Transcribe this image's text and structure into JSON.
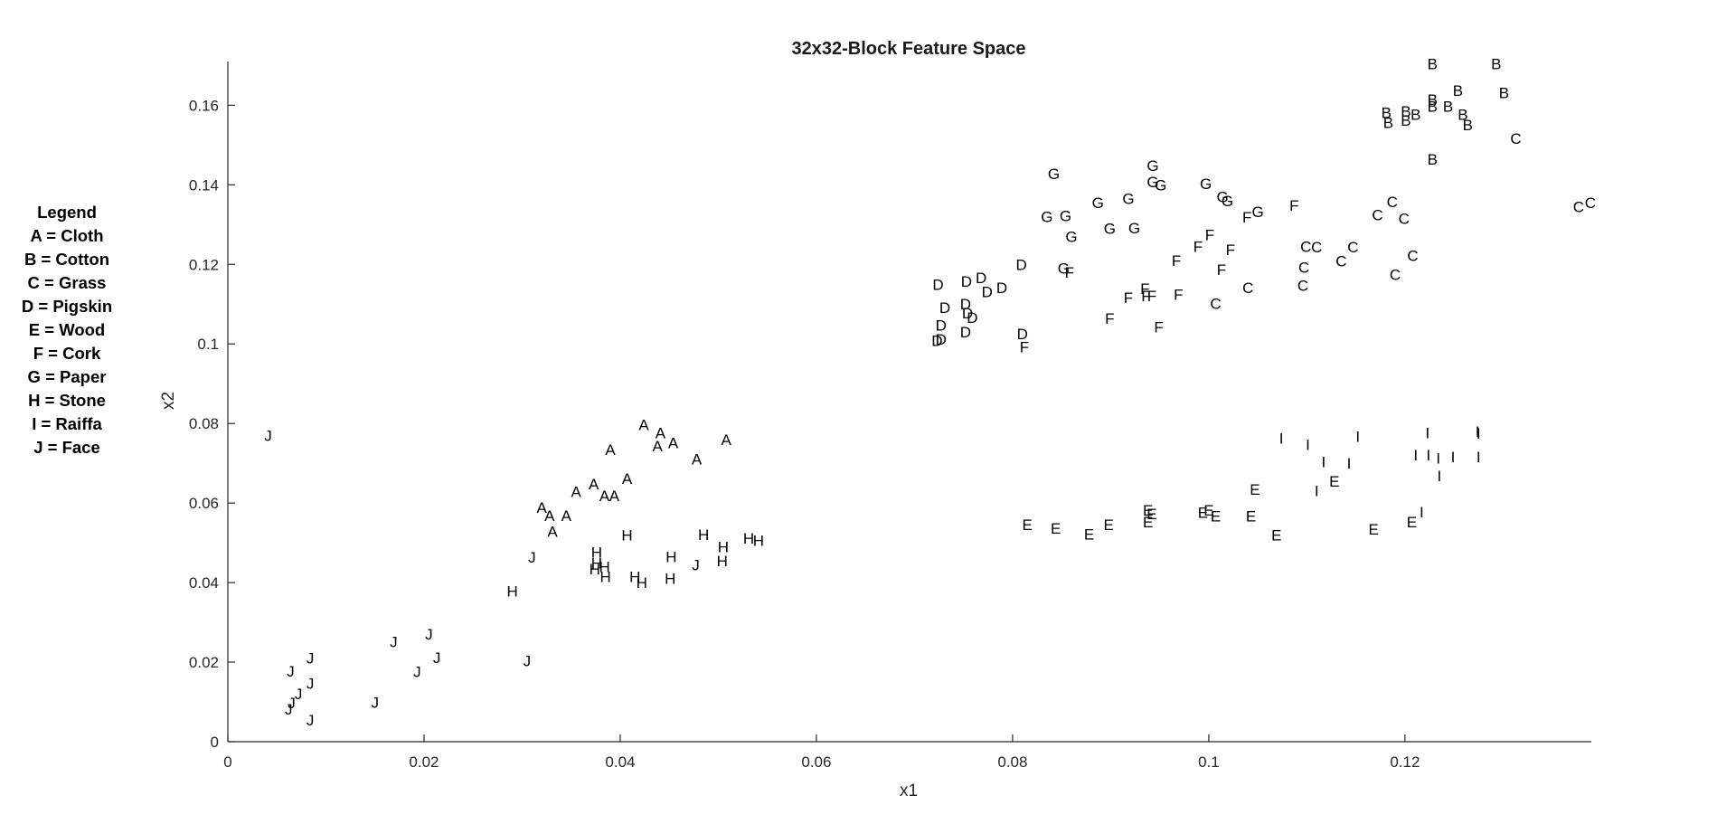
{
  "chart_data": {
    "type": "scatter",
    "title": "32x32-Block Feature Space",
    "xlabel": "x1",
    "ylabel": "x2",
    "xlim": [
      0,
      0.139
    ],
    "ylim": [
      0,
      0.171
    ],
    "xticks": [
      0,
      0.02,
      0.04,
      0.06,
      0.08,
      0.1,
      0.12
    ],
    "xtick_labels": [
      "0",
      "0.02",
      "0.04",
      "0.06",
      "0.08",
      "0.1",
      "0.12"
    ],
    "yticks": [
      0,
      0.02,
      0.04,
      0.06,
      0.08,
      0.1,
      0.12,
      0.14,
      0.16
    ],
    "ytick_labels": [
      "0",
      "0.02",
      "0.04",
      "0.06",
      "0.08",
      "0.1",
      "0.12",
      "0.14",
      "0.16"
    ],
    "grid": false,
    "legend_placement": "left, outside plot",
    "marker_color": "#000000",
    "legend": {
      "title": "Legend",
      "entries": [
        "A = Cloth",
        "B = Cotton",
        "C = Grass",
        "D = Pigskin",
        "E = Wood",
        "F = Cork",
        "G = Paper",
        "H = Stone",
        "I = Raiffa",
        "J = Face"
      ]
    },
    "series": [
      {
        "name": "A",
        "points": [
          [
            0.0424,
            0.0797
          ],
          [
            0.0441,
            0.0776
          ],
          [
            0.0438,
            0.0744
          ],
          [
            0.0454,
            0.0752
          ],
          [
            0.0508,
            0.0759
          ],
          [
            0.039,
            0.0734
          ],
          [
            0.0478,
            0.0711
          ],
          [
            0.0407,
            0.0662
          ],
          [
            0.0373,
            0.0648
          ],
          [
            0.0355,
            0.0629
          ],
          [
            0.0384,
            0.0618
          ],
          [
            0.0394,
            0.0618
          ],
          [
            0.032,
            0.0589
          ],
          [
            0.0328,
            0.0569
          ],
          [
            0.0345,
            0.0569
          ],
          [
            0.0331,
            0.0529
          ]
        ]
      },
      {
        "name": "B",
        "points": [
          [
            0.1228,
            0.1704
          ],
          [
            0.1293,
            0.1704
          ],
          [
            0.1301,
            0.1631
          ],
          [
            0.1254,
            0.1637
          ],
          [
            0.1228,
            0.1614
          ],
          [
            0.1228,
            0.1597
          ],
          [
            0.1244,
            0.1597
          ],
          [
            0.1259,
            0.1577
          ],
          [
            0.1181,
            0.1582
          ],
          [
            0.1201,
            0.1585
          ],
          [
            0.1211,
            0.1577
          ],
          [
            0.1201,
            0.1562
          ],
          [
            0.1183,
            0.1557
          ],
          [
            0.1264,
            0.1551
          ],
          [
            0.1228,
            0.1464
          ]
        ]
      },
      {
        "name": "C",
        "points": [
          [
            0.1313,
            0.1517
          ],
          [
            0.1377,
            0.1345
          ],
          [
            0.1389,
            0.1355
          ],
          [
            0.1187,
            0.1358
          ],
          [
            0.1172,
            0.1325
          ],
          [
            0.1199,
            0.1315
          ],
          [
            0.1147,
            0.1244
          ],
          [
            0.1099,
            0.1245
          ],
          [
            0.111,
            0.1244
          ],
          [
            0.1208,
            0.1222
          ],
          [
            0.1135,
            0.1209
          ],
          [
            0.1097,
            0.1193
          ],
          [
            0.119,
            0.1175
          ],
          [
            0.1096,
            0.1147
          ],
          [
            0.104,
            0.1142
          ],
          [
            0.1007,
            0.1102
          ]
        ]
      },
      {
        "name": "D",
        "points": [
          [
            0.0724,
            0.115
          ],
          [
            0.0753,
            0.1157
          ],
          [
            0.0768,
            0.1166
          ],
          [
            0.0809,
            0.12
          ],
          [
            0.0752,
            0.1101
          ],
          [
            0.0774,
            0.1131
          ],
          [
            0.0789,
            0.1141
          ],
          [
            0.0731,
            0.1092
          ],
          [
            0.0754,
            0.1078
          ],
          [
            0.0759,
            0.1066
          ],
          [
            0.0727,
            0.1047
          ],
          [
            0.0752,
            0.103
          ],
          [
            0.0727,
            0.1012
          ],
          [
            0.0723,
            0.1009
          ],
          [
            0.081,
            0.1025
          ]
        ]
      },
      {
        "name": "E",
        "points": [
          [
            0.1128,
            0.0655
          ],
          [
            0.1047,
            0.0634
          ],
          [
            0.0938,
            0.0582
          ],
          [
            0.0942,
            0.0573
          ],
          [
            0.0994,
            0.0577
          ],
          [
            0.1,
            0.0582
          ],
          [
            0.1007,
            0.0567
          ],
          [
            0.1043,
            0.0567
          ],
          [
            0.1207,
            0.0553
          ],
          [
            0.0938,
            0.0553
          ],
          [
            0.0898,
            0.0546
          ],
          [
            0.0815,
            0.0546
          ],
          [
            0.0844,
            0.0537
          ],
          [
            0.0878,
            0.0522
          ],
          [
            0.1168,
            0.0534
          ],
          [
            0.1069,
            0.052
          ]
        ]
      },
      {
        "name": "F",
        "points": [
          [
            0.0899,
            0.1064
          ],
          [
            0.0949,
            0.1043
          ],
          [
            0.0812,
            0.0993
          ],
          [
            0.0858,
            0.118
          ],
          [
            0.0918,
            0.1117
          ],
          [
            0.0936,
            0.1121
          ],
          [
            0.0942,
            0.1121
          ],
          [
            0.0935,
            0.1139
          ],
          [
            0.0969,
            0.1125
          ],
          [
            0.0967,
            0.121
          ],
          [
            0.0989,
            0.1245
          ],
          [
            0.1001,
            0.1275
          ],
          [
            0.1013,
            0.1187
          ],
          [
            0.1022,
            0.1237
          ],
          [
            0.1039,
            0.1319
          ],
          [
            0.1087,
            0.1349
          ]
        ]
      },
      {
        "name": "G",
        "points": [
          [
            0.0842,
            0.1428
          ],
          [
            0.0943,
            0.1448
          ],
          [
            0.0943,
            0.1408
          ],
          [
            0.0951,
            0.14
          ],
          [
            0.0997,
            0.1403
          ],
          [
            0.1014,
            0.137
          ],
          [
            0.1019,
            0.136
          ],
          [
            0.0918,
            0.1365
          ],
          [
            0.0887,
            0.1355
          ],
          [
            0.0854,
            0.1322
          ],
          [
            0.0835,
            0.132
          ],
          [
            0.105,
            0.1333
          ],
          [
            0.0899,
            0.129
          ],
          [
            0.0924,
            0.1292
          ],
          [
            0.086,
            0.127
          ],
          [
            0.0852,
            0.119
          ]
        ]
      },
      {
        "name": "H",
        "points": [
          [
            0.0407,
            0.052
          ],
          [
            0.0485,
            0.0521
          ],
          [
            0.0531,
            0.0512
          ],
          [
            0.0541,
            0.0506
          ],
          [
            0.0505,
            0.049
          ],
          [
            0.0376,
            0.0476
          ],
          [
            0.0452,
            0.0465
          ],
          [
            0.0376,
            0.0449
          ],
          [
            0.0504,
            0.0455
          ],
          [
            0.0384,
            0.044
          ],
          [
            0.0374,
            0.0434
          ],
          [
            0.0385,
            0.0415
          ],
          [
            0.0415,
            0.0415
          ],
          [
            0.0451,
            0.041
          ],
          [
            0.0422,
            0.04
          ],
          [
            0.029,
            0.0379
          ]
        ]
      },
      {
        "name": "I",
        "points": [
          [
            0.1223,
            0.0777
          ],
          [
            0.1274,
            0.078
          ],
          [
            0.1074,
            0.0763
          ],
          [
            0.1152,
            0.0767
          ],
          [
            0.1101,
            0.0747
          ],
          [
            0.1211,
            0.0721
          ],
          [
            0.1224,
            0.0721
          ],
          [
            0.1249,
            0.0716
          ],
          [
            0.1275,
            0.0716
          ],
          [
            0.1234,
            0.0713
          ],
          [
            0.1117,
            0.0704
          ],
          [
            0.1143,
            0.07
          ],
          [
            0.1235,
            0.0669
          ],
          [
            0.111,
            0.0631
          ],
          [
            0.1217,
            0.0578
          ],
          [
            0.1275,
            0.0775
          ]
        ]
      },
      {
        "name": "J",
        "points": [
          [
            0.0041,
            0.077
          ],
          [
            0.031,
            0.0464
          ],
          [
            0.0205,
            0.0271
          ],
          [
            0.0169,
            0.0251
          ],
          [
            0.0213,
            0.0211
          ],
          [
            0.0084,
            0.021
          ],
          [
            0.0305,
            0.0203
          ],
          [
            0.0064,
            0.0177
          ],
          [
            0.0193,
            0.0176
          ],
          [
            0.0084,
            0.0147
          ],
          [
            0.0072,
            0.0121
          ],
          [
            0.0065,
            0.0098
          ],
          [
            0.015,
            0.0099
          ],
          [
            0.0062,
            0.0082
          ],
          [
            0.0084,
            0.0055
          ],
          [
            0.0477,
            0.0445
          ]
        ]
      }
    ]
  }
}
